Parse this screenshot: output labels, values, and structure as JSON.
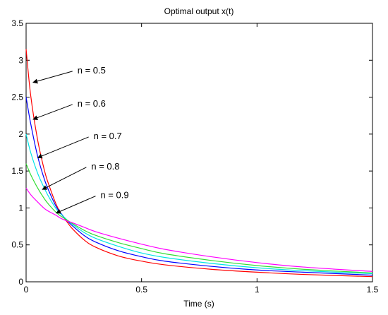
{
  "chart_data": {
    "type": "line",
    "title": "Optimal output x(t)",
    "xlabel": "Time (s)",
    "ylabel": "",
    "xlim": [
      0,
      1.5
    ],
    "ylim": [
      0,
      3.5
    ],
    "xticks": [
      0,
      0.5,
      1,
      1.5
    ],
    "xtick_labels": [
      "0",
      "0.5",
      "1",
      "1.5"
    ],
    "yticks": [
      0,
      0.5,
      1,
      1.5,
      2,
      2.5,
      3,
      3.5
    ],
    "ytick_labels": [
      "0",
      "0.5",
      "1",
      "1.5",
      "2",
      "2.5",
      "3",
      "3.5"
    ],
    "grid": false,
    "legend": "none",
    "x": [
      0,
      0.02,
      0.05,
      0.08,
      0.1,
      0.13,
      0.15,
      0.18,
      0.2,
      0.25,
      0.3,
      0.4,
      0.5,
      0.6,
      0.8,
      1.0,
      1.2,
      1.5
    ],
    "series": [
      {
        "color": "#ff0000",
        "values": [
          3.15,
          2.52,
          1.92,
          1.5,
          1.3,
          1.05,
          0.93,
          0.8,
          0.72,
          0.57,
          0.47,
          0.35,
          0.28,
          0.23,
          0.17,
          0.13,
          0.1,
          0.07
        ]
      },
      {
        "color": "#0000ff",
        "values": [
          2.5,
          2.14,
          1.7,
          1.38,
          1.22,
          1.02,
          0.93,
          0.82,
          0.76,
          0.63,
          0.54,
          0.42,
          0.34,
          0.28,
          0.21,
          0.16,
          0.13,
          0.09
        ]
      },
      {
        "color": "#00e5e5",
        "values": [
          2.0,
          1.75,
          1.47,
          1.26,
          1.14,
          0.99,
          0.92,
          0.83,
          0.78,
          0.67,
          0.59,
          0.48,
          0.39,
          0.33,
          0.25,
          0.19,
          0.15,
          0.11
        ]
      },
      {
        "color": "#33dd33",
        "values": [
          1.6,
          1.45,
          1.27,
          1.12,
          1.04,
          0.94,
          0.89,
          0.83,
          0.79,
          0.7,
          0.63,
          0.53,
          0.45,
          0.38,
          0.29,
          0.22,
          0.17,
          0.12
        ]
      },
      {
        "color": "#ff00ff",
        "values": [
          1.27,
          1.18,
          1.08,
          0.99,
          0.95,
          0.9,
          0.86,
          0.82,
          0.8,
          0.74,
          0.68,
          0.59,
          0.51,
          0.44,
          0.34,
          0.26,
          0.2,
          0.14
        ]
      }
    ],
    "annotations": [
      {
        "text": "n = 0.5",
        "text_x": 0.21,
        "text_y": 2.87,
        "arrow_to_x": 0.03,
        "arrow_to_y": 2.7
      },
      {
        "text": "n = 0.6",
        "text_x": 0.21,
        "text_y": 2.42,
        "arrow_to_x": 0.03,
        "arrow_to_y": 2.2
      },
      {
        "text": "n = 0.7",
        "text_x": 0.28,
        "text_y": 1.98,
        "arrow_to_x": 0.05,
        "arrow_to_y": 1.68
      },
      {
        "text": "n = 0.8",
        "text_x": 0.27,
        "text_y": 1.57,
        "arrow_to_x": 0.07,
        "arrow_to_y": 1.25
      },
      {
        "text": "n = 0.9",
        "text_x": 0.31,
        "text_y": 1.18,
        "arrow_to_x": 0.13,
        "arrow_to_y": 0.93
      }
    ]
  }
}
